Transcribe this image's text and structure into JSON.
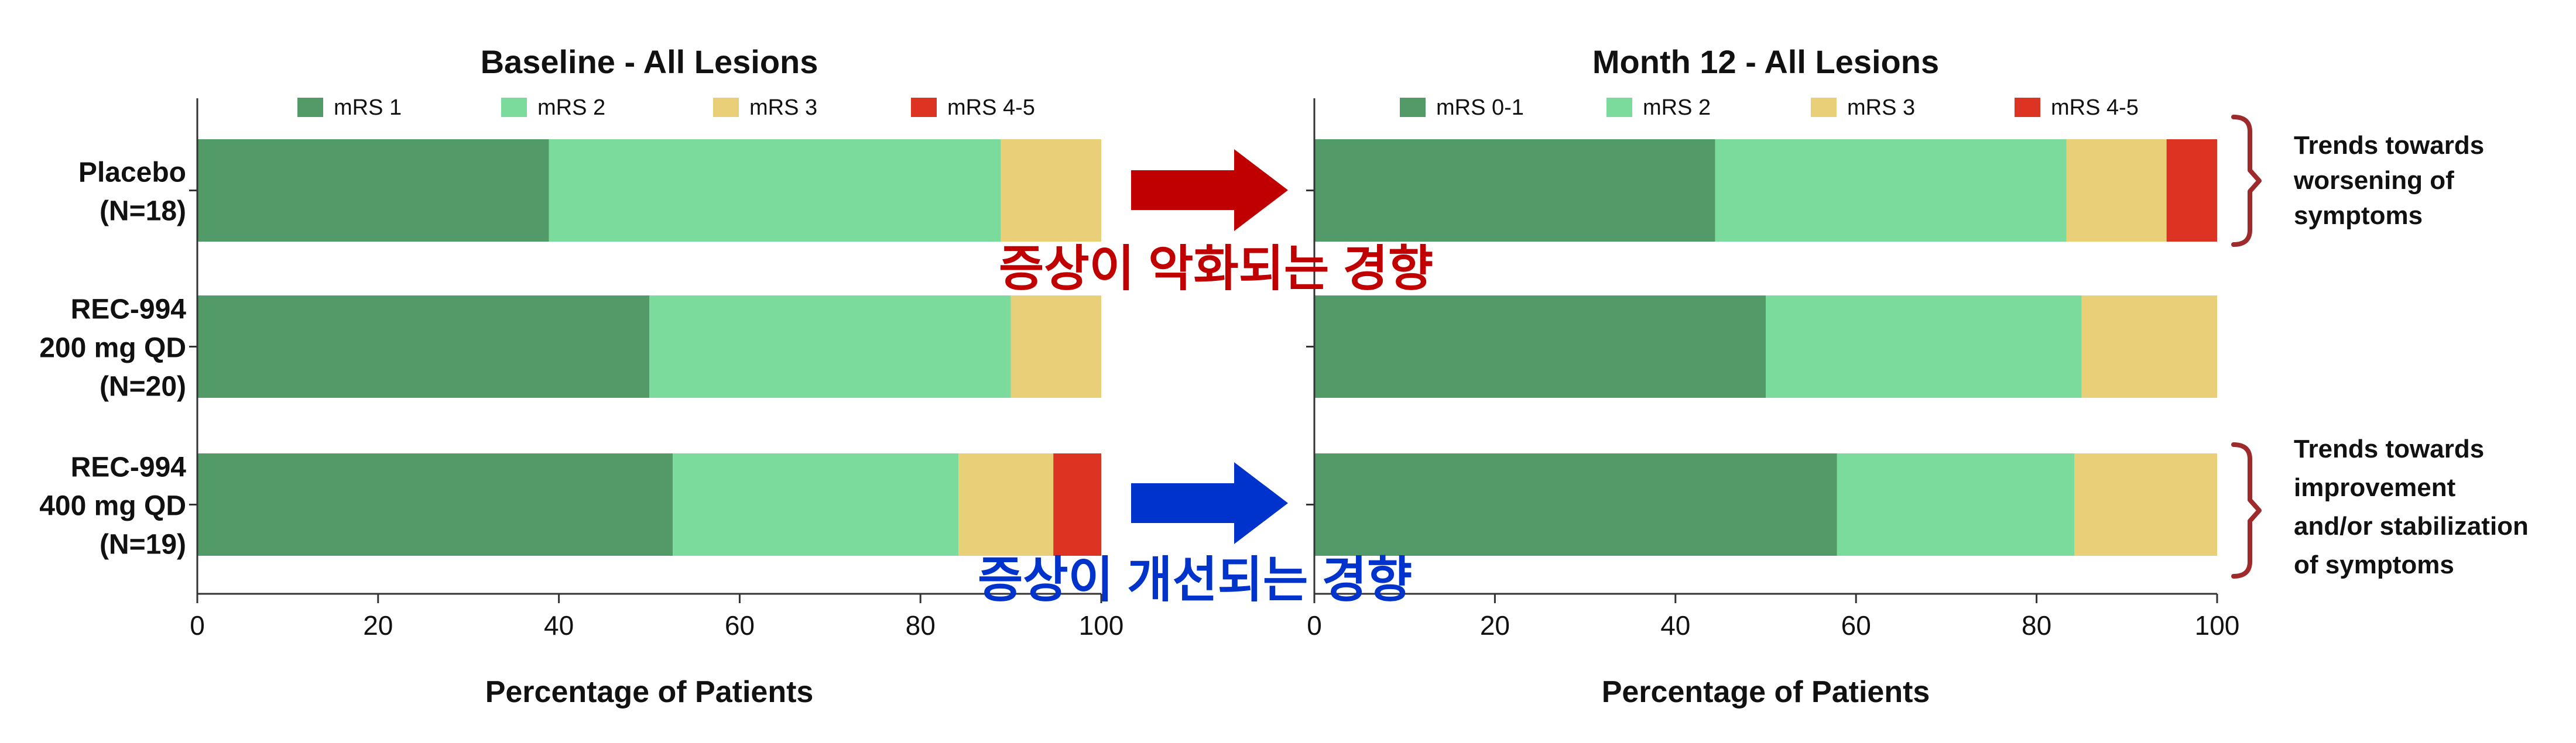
{
  "chart_data": [
    {
      "type": "bar",
      "orientation": "horizontal",
      "stacked": true,
      "title": "Baseline - All Lesions",
      "xlabel": "Percentage of Patients",
      "ylabel": "",
      "xlim": [
        0,
        100
      ],
      "xticks": [
        "0",
        "20",
        "40",
        "60",
        "80",
        "100"
      ],
      "categories": [
        [
          "Placebo",
          "(N=18)"
        ],
        [
          "REC-994",
          "200 mg QD",
          "(N=20)"
        ],
        [
          "REC-994",
          "400 mg QD",
          "(N=19)"
        ]
      ],
      "legend_position": "top",
      "grid": false,
      "series": [
        {
          "name": "mRS 1",
          "color": "#529a68",
          "values": [
            38.9,
            50.0,
            52.6
          ]
        },
        {
          "name": "mRS 2",
          "color": "#7adb9c",
          "values": [
            50.0,
            40.0,
            31.6
          ]
        },
        {
          "name": "mRS 3",
          "color": "#e9cf78",
          "values": [
            11.1,
            10.0,
            10.5
          ]
        },
        {
          "name": "mRS 4-5",
          "color": "#dd3322",
          "values": [
            0.0,
            0.0,
            5.3
          ]
        }
      ]
    },
    {
      "type": "bar",
      "orientation": "horizontal",
      "stacked": true,
      "title": "Month 12 - All Lesions",
      "xlabel": "Percentage of Patients",
      "ylabel": "",
      "xlim": [
        0,
        100
      ],
      "xticks": [
        "0",
        "20",
        "40",
        "60",
        "80",
        "100"
      ],
      "categories": [
        [
          "Placebo",
          "(N=18)"
        ],
        [
          "REC-994",
          "200 mg QD",
          "(N=20)"
        ],
        [
          "REC-994",
          "400 mg QD",
          "(N=19)"
        ]
      ],
      "legend_position": "top",
      "grid": false,
      "series": [
        {
          "name": "mRS 0-1",
          "color": "#529a68",
          "values": [
            44.4,
            50.0,
            57.9
          ]
        },
        {
          "name": "mRS 2",
          "color": "#7adb9c",
          "values": [
            38.9,
            35.0,
            26.3
          ]
        },
        {
          "name": "mRS 3",
          "color": "#e9cf78",
          "values": [
            11.1,
            15.0,
            15.8
          ]
        },
        {
          "name": "mRS 4-5",
          "color": "#dd3322",
          "values": [
            5.6,
            0.0,
            0.0
          ]
        }
      ]
    }
  ],
  "annotations": {
    "worsening_korean": "증상이 악화되는 경향",
    "improving_korean": "증상이 개선되는 경향",
    "bracket_top_lines": [
      "Trends towards",
      "worsening of",
      "symptoms"
    ],
    "bracket_bottom_lines": [
      "Trends towards",
      "improvement",
      "and/or stabilization",
      "of symptoms"
    ],
    "colors": {
      "worsening_arrow": "#c00000",
      "improving_arrow": "#0033cc",
      "bracket": "#9e2a2b",
      "axis": "#333333"
    }
  }
}
